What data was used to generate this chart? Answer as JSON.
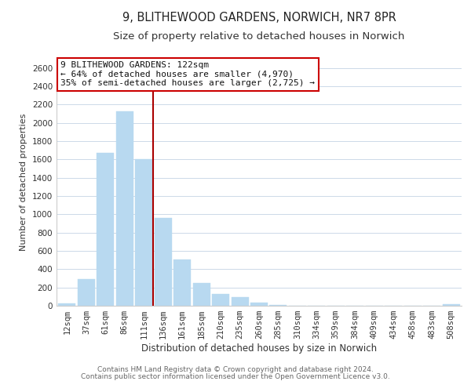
{
  "title": "9, BLITHEWOOD GARDENS, NORWICH, NR7 8PR",
  "subtitle": "Size of property relative to detached houses in Norwich",
  "xlabel": "Distribution of detached houses by size in Norwich",
  "ylabel": "Number of detached properties",
  "bar_color": "#b8d9f0",
  "bar_edge_color": "#b8d9f0",
  "background_color": "#ffffff",
  "grid_color": "#ccd9e8",
  "annotation_box_color": "#ffffff",
  "annotation_box_edge": "#cc0000",
  "vline_color": "#aa0000",
  "footer1": "Contains HM Land Registry data © Crown copyright and database right 2024.",
  "footer2": "Contains public sector information licensed under the Open Government Licence v3.0.",
  "annotation_title": "9 BLITHEWOOD GARDENS: 122sqm",
  "annotation_line1": "← 64% of detached houses are smaller (4,970)",
  "annotation_line2": "35% of semi-detached houses are larger (2,725) →",
  "bin_labels": [
    "12sqm",
    "37sqm",
    "61sqm",
    "86sqm",
    "111sqm",
    "136sqm",
    "161sqm",
    "185sqm",
    "210sqm",
    "235sqm",
    "260sqm",
    "285sqm",
    "310sqm",
    "334sqm",
    "359sqm",
    "384sqm",
    "409sqm",
    "434sqm",
    "458sqm",
    "483sqm",
    "508sqm"
  ],
  "bar_heights": [
    25,
    295,
    1670,
    2130,
    1600,
    960,
    505,
    250,
    125,
    95,
    35,
    5,
    0,
    0,
    0,
    0,
    0,
    0,
    0,
    0,
    20
  ],
  "vline_x": 4.5,
  "ylim": [
    0,
    2700
  ],
  "yticks": [
    0,
    200,
    400,
    600,
    800,
    1000,
    1200,
    1400,
    1600,
    1800,
    2000,
    2200,
    2400,
    2600
  ],
  "title_fontsize": 10.5,
  "subtitle_fontsize": 9.5,
  "xlabel_fontsize": 8.5,
  "ylabel_fontsize": 8,
  "tick_fontsize": 7.5,
  "annotation_fontsize": 8,
  "footer_fontsize": 6.5
}
